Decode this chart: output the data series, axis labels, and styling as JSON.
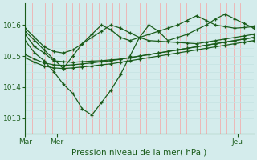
{
  "bg_color": "#d4ecec",
  "line_color": "#1a5c1a",
  "grid_color_major": "#c8e4e4",
  "grid_color_minor": "#f0b0b0",
  "title": "Pression niveau de la mer( hPa )",
  "xlabel_mar": "Mar",
  "xlabel_mer": "Mer",
  "xlabel_jeu": "Jeu",
  "ylim": [
    1012.5,
    1016.7
  ],
  "yticks": [
    1013,
    1014,
    1015,
    1016
  ],
  "n_points": 25,
  "series": [
    [
      1015.7,
      1015.3,
      1015.1,
      1014.85,
      1014.82,
      1014.8,
      1014.82,
      1014.84,
      1014.85,
      1014.88,
      1014.9,
      1014.95,
      1015.0,
      1015.05,
      1015.1,
      1015.15,
      1015.2,
      1015.25,
      1015.3,
      1015.35,
      1015.4,
      1015.45,
      1015.5,
      1015.55,
      1015.6
    ],
    [
      1015.05,
      1014.9,
      1014.78,
      1014.72,
      1014.7,
      1014.72,
      1014.75,
      1014.78,
      1014.82,
      1014.85,
      1014.9,
      1014.95,
      1015.0,
      1015.05,
      1015.1,
      1015.15,
      1015.2,
      1015.25,
      1015.3,
      1015.35,
      1015.4,
      1015.45,
      1015.5,
      1015.55,
      1015.6
    ],
    [
      1014.95,
      1014.8,
      1014.68,
      1014.62,
      1014.6,
      1014.62,
      1014.65,
      1014.68,
      1014.72,
      1014.75,
      1014.8,
      1014.85,
      1014.9,
      1014.95,
      1015.0,
      1015.05,
      1015.1,
      1015.15,
      1015.2,
      1015.25,
      1015.3,
      1015.35,
      1015.4,
      1015.45,
      1015.5
    ],
    [
      1015.5,
      1015.1,
      1014.85,
      1014.5,
      1014.1,
      1013.8,
      1013.3,
      1013.1,
      1013.5,
      1013.9,
      1014.4,
      1015.0,
      1015.6,
      1016.0,
      1015.8,
      1015.5,
      1015.6,
      1015.7,
      1015.85,
      1016.0,
      1016.2,
      1016.35,
      1016.2,
      1016.05,
      1015.9
    ],
    [
      1015.9,
      1015.6,
      1015.3,
      1015.15,
      1015.1,
      1015.2,
      1015.4,
      1015.6,
      1015.8,
      1016.0,
      1015.9,
      1015.75,
      1015.6,
      1015.5,
      1015.48,
      1015.46,
      1015.44,
      1015.42,
      1015.4,
      1015.45,
      1015.5,
      1015.55,
      1015.6,
      1015.65,
      1015.7
    ],
    [
      1015.8,
      1015.5,
      1015.2,
      1014.9,
      1014.6,
      1015.0,
      1015.4,
      1015.7,
      1016.0,
      1015.85,
      1015.6,
      1015.5,
      1015.6,
      1015.7,
      1015.8,
      1015.9,
      1016.0,
      1016.15,
      1016.3,
      1016.15,
      1016.0,
      1015.95,
      1015.9,
      1015.92,
      1015.95
    ]
  ],
  "x_tick_positions": [
    0.0,
    0.14,
    0.93
  ],
  "n_vlines": 34,
  "n_hlines_per_unit": 4
}
